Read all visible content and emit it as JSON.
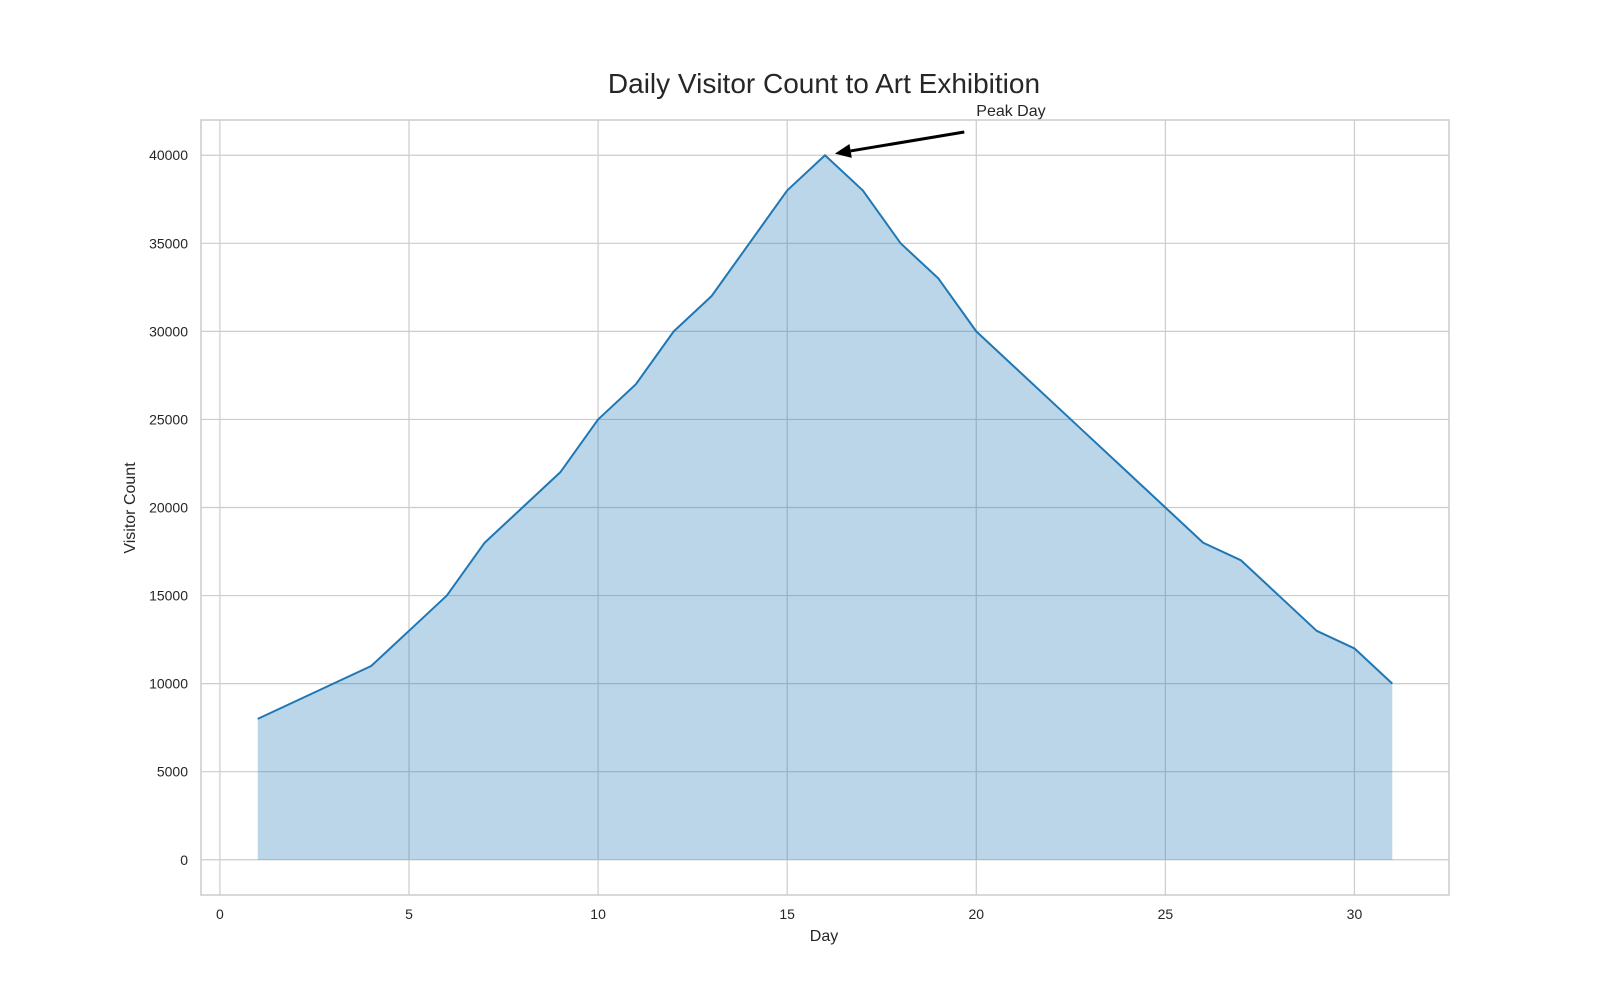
{
  "chart_data": {
    "type": "area",
    "title": "Daily Visitor Count to Art Exhibition",
    "xlabel": "Day",
    "ylabel": "Visitor Count",
    "x": [
      1,
      2,
      3,
      4,
      5,
      6,
      7,
      8,
      9,
      10,
      11,
      12,
      13,
      14,
      15,
      16,
      17,
      18,
      19,
      20,
      21,
      22,
      23,
      24,
      25,
      26,
      27,
      28,
      29,
      30,
      31
    ],
    "series": [
      {
        "values": [
          8000,
          9000,
          10000,
          11000,
          13000,
          15000,
          18000,
          20000,
          22000,
          25000,
          27000,
          30000,
          32000,
          35000,
          38000,
          40000,
          38000,
          35000,
          33000,
          30000,
          28000,
          26000,
          24000,
          22000,
          20000,
          18000,
          17000,
          15000,
          13000,
          12000,
          10000
        ]
      }
    ],
    "xlim": [
      -0.5,
      32.5
    ],
    "ylim": [
      -2000,
      42000
    ],
    "x_ticks": [
      0,
      5,
      10,
      15,
      20,
      25,
      30
    ],
    "y_ticks": [
      0,
      5000,
      10000,
      15000,
      20000,
      25000,
      30000,
      35000,
      40000
    ],
    "grid": true,
    "line_color": "#1f77b4",
    "fill_color": "#1f77b4",
    "fill_opacity": 0.3,
    "annotation": {
      "text": "Peak Day",
      "target": {
        "x": 16,
        "y": 40000
      },
      "text_at": {
        "x": 20,
        "y": 42000
      }
    }
  }
}
